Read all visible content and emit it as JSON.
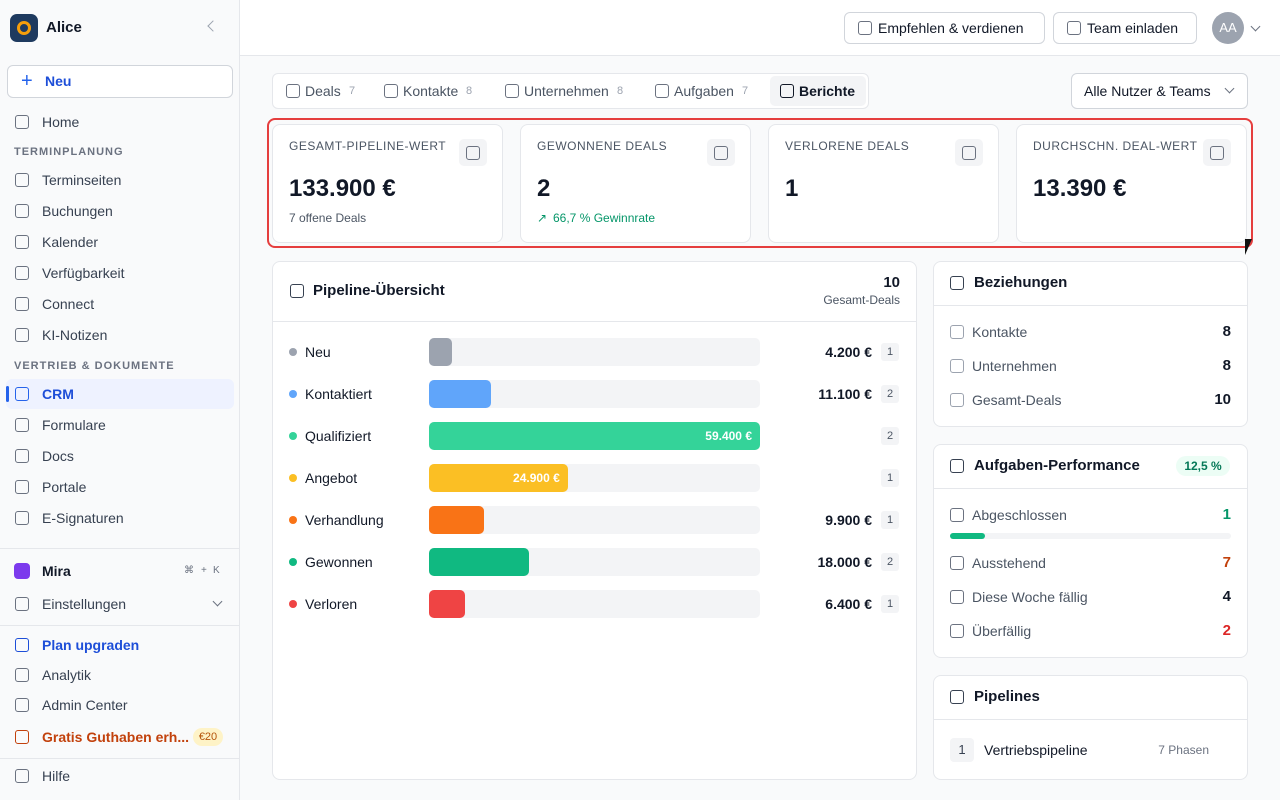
{
  "sidebar": {
    "workspace": "Alice",
    "new_button": "Neu",
    "nav": [
      {
        "label": "Home"
      }
    ],
    "sections": [
      {
        "title": "TERMINPLANUNG",
        "items": [
          "Terminseiten",
          "Buchungen",
          "Kalender",
          "Verfügbarkeit",
          "Connect",
          "KI-Notizen"
        ]
      },
      {
        "title": "VERTRIEB & DOKUMENTE",
        "items": [
          "CRM",
          "Formulare",
          "Docs",
          "Portale",
          "E-Signaturen"
        ]
      }
    ],
    "active": "CRM",
    "mira": {
      "label": "Mira",
      "shortcut": [
        "⌘",
        "+",
        "K"
      ]
    },
    "settings": "Einstellungen",
    "bottom": [
      "Plan upgraden",
      "Analytik",
      "Admin Center"
    ],
    "credit": {
      "label": "Gratis Guthaben erh...",
      "badge": "€20"
    },
    "help": "Hilfe"
  },
  "header": {
    "refer": "Empfehlen & verdienen",
    "invite": "Team einladen",
    "avatar": "AA"
  },
  "tabs": [
    {
      "label": "Deals",
      "count": 7
    },
    {
      "label": "Kontakte",
      "count": 8
    },
    {
      "label": "Unternehmen",
      "count": 8
    },
    {
      "label": "Aufgaben",
      "count": 7
    },
    {
      "label": "Berichte"
    }
  ],
  "active_tab": "Berichte",
  "filter": "Alle Nutzer & Teams",
  "kpis": [
    {
      "label": "GESAMT-PIPELINE-WERT",
      "value": "133.900 €",
      "sub": "7 offene Deals"
    },
    {
      "label": "GEWONNENE DEALS",
      "value": "2",
      "sub": "66,7 % Gewinnrate"
    },
    {
      "label": "VERLORENE DEALS",
      "value": "1"
    },
    {
      "label": "DURCHSCHN. DEAL-WERT",
      "value": "13.390 €"
    }
  ],
  "pipeline": {
    "title": "Pipeline-Übersicht",
    "total": 10,
    "total_label": "Gesamt-Deals",
    "stages": [
      {
        "name": "Neu",
        "color": "#9ca3af",
        "amount": 4200,
        "amount_label": "4.200 €",
        "count": 1,
        "inside": false
      },
      {
        "name": "Kontaktiert",
        "color": "#60a5fa",
        "amount": 11100,
        "amount_label": "11.100 €",
        "count": 2,
        "inside": false
      },
      {
        "name": "Qualifiziert",
        "color": "#34d399",
        "amount": 59400,
        "amount_label": "59.400 €",
        "count": 2,
        "inside": true
      },
      {
        "name": "Angebot",
        "color": "#fbbf24",
        "amount": 24900,
        "amount_label": "24.900 €",
        "count": 1,
        "inside": true
      },
      {
        "name": "Verhandlung",
        "color": "#f97316",
        "amount": 9900,
        "amount_label": "9.900 €",
        "count": 1,
        "inside": false
      },
      {
        "name": "Gewonnen",
        "color": "#10b981",
        "amount": 18000,
        "amount_label": "18.000 €",
        "count": 2,
        "inside": false
      },
      {
        "name": "Verloren",
        "color": "#ef4444",
        "amount": 6400,
        "amount_label": "6.400 €",
        "count": 1,
        "inside": false
      }
    ]
  },
  "relations": {
    "title": "Beziehungen",
    "rows": [
      {
        "label": "Kontakte",
        "value": 8
      },
      {
        "label": "Unternehmen",
        "value": 8
      },
      {
        "label": "Gesamt-Deals",
        "value": 10
      }
    ]
  },
  "tasks": {
    "title": "Aufgaben-Performance",
    "badge": "12,5 %",
    "rows": [
      {
        "label": "Abgeschlossen",
        "value": 1,
        "color": "#059669"
      },
      {
        "label": "Ausstehend",
        "value": 7,
        "color": "#c2410c"
      },
      {
        "label": "Diese Woche fällig",
        "value": 4,
        "color": "#111827"
      },
      {
        "label": "Überfällig",
        "value": 2,
        "color": "#dc2626"
      }
    ]
  },
  "pipelines": {
    "title": "Pipelines",
    "rows": [
      {
        "index": 1,
        "name": "Vertriebspipeline",
        "phases": "7 Phasen"
      }
    ]
  }
}
